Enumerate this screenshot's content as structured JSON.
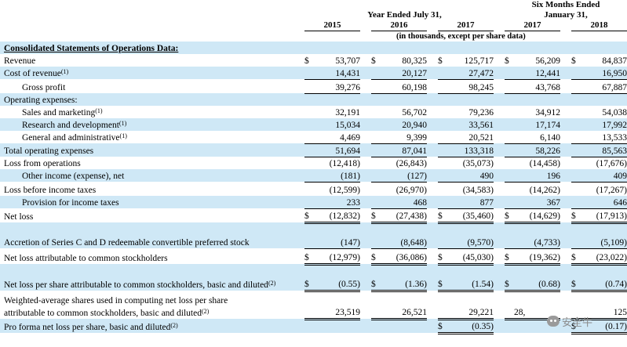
{
  "header": {
    "group_year": "Year Ended July 31,",
    "group_six_line1": "Six Months Ended",
    "group_six_line2": "January 31,",
    "years": [
      "2015",
      "2016",
      "2017",
      "2017",
      "2018"
    ],
    "units": "(in thousands, except per share data)"
  },
  "section_title": "Consolidated Statements of Operations Data:",
  "rows": [
    {
      "label": "Revenue",
      "footnote": "",
      "dollar": true,
      "values": [
        "53,707",
        "80,325",
        "125,717",
        "56,209",
        "84,837"
      ]
    },
    {
      "label": "Cost of revenue",
      "footnote": "(1)",
      "values": [
        "14,431",
        "20,127",
        "27,472",
        "12,441",
        "16,950"
      ]
    },
    {
      "label": "Gross profit",
      "footnote": "",
      "values": [
        "39,276",
        "60,198",
        "98,245",
        "43,768",
        "67,887"
      ]
    },
    {
      "label": "Operating expenses:",
      "footnote": "",
      "values": [
        "",
        "",
        "",
        "",
        ""
      ]
    },
    {
      "label": "Sales and marketing",
      "footnote": "(1)",
      "values": [
        "32,191",
        "56,702",
        "79,236",
        "34,912",
        "54,038"
      ]
    },
    {
      "label": "Research and development",
      "footnote": "(1)",
      "values": [
        "15,034",
        "20,940",
        "33,561",
        "17,174",
        "17,992"
      ]
    },
    {
      "label": "General and administrative",
      "footnote": "(1)",
      "values": [
        "4,469",
        "9,399",
        "20,521",
        "6,140",
        "13,533"
      ]
    },
    {
      "label": "Total operating expenses",
      "footnote": "",
      "values": [
        "51,694",
        "87,041",
        "133,318",
        "58,226",
        "85,563"
      ]
    },
    {
      "label": "Loss from operations",
      "footnote": "",
      "values": [
        "(12,418)",
        "(26,843)",
        "(35,073)",
        "(14,458)",
        "(17,676)"
      ]
    },
    {
      "label": "Other income (expense), net",
      "footnote": "",
      "values": [
        "(181)",
        "(127)",
        "490",
        "196",
        "409"
      ]
    },
    {
      "label": "Loss before income taxes",
      "footnote": "",
      "values": [
        "(12,599)",
        "(26,970)",
        "(34,583)",
        "(14,262)",
        "(17,267)"
      ]
    },
    {
      "label": "Provision for income taxes",
      "footnote": "",
      "values": [
        "233",
        "468",
        "877",
        "367",
        "646"
      ]
    },
    {
      "label": "Net loss",
      "footnote": "",
      "values": [
        "(12,832)",
        "(27,438)",
        "(35,460)",
        "(14,629)",
        "(17,913)"
      ]
    },
    {
      "label": "Accretion of Series C and D redeemable convertible preferred stock",
      "footnote": "",
      "values": [
        "(147)",
        "(8,648)",
        "(9,570)",
        "(4,733)",
        "(5,109)"
      ]
    },
    {
      "label": "Net loss attributable to common stockholders",
      "footnote": "",
      "values": [
        "(12,979)",
        "(36,086)",
        "(45,030)",
        "(19,362)",
        "(23,022)"
      ]
    },
    {
      "label": "Net loss per share attributable to common stockholders, basic and diluted",
      "footnote": "(2)",
      "values": [
        "(0.55)",
        "(1.36)",
        "(1.54)",
        "(0.68)",
        "(0.74)"
      ]
    },
    {
      "label": "Weighted-average shares used in computing net loss per share attributable to common stockholders, basic and diluted",
      "footnote": "(2)",
      "values": [
        "23,519",
        "26,521",
        "29,221",
        "28,",
        "125"
      ]
    },
    {
      "label": "Pro forma net loss per share, basic and diluted",
      "footnote": "(2)",
      "values": [
        "",
        "",
        "(0.35)",
        "",
        "(0.17)"
      ]
    }
  ],
  "currency_symbol": "$",
  "watermark_text": "安全牛",
  "colors": {
    "shade": "#cfe8f6"
  }
}
